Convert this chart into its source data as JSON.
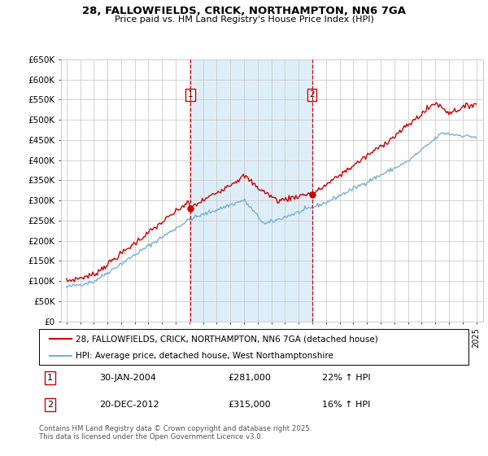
{
  "title1": "28, FALLOWFIELDS, CRICK, NORTHAMPTON, NN6 7GA",
  "title2": "Price paid vs. HM Land Registry's House Price Index (HPI)",
  "ylim": [
    0,
    650000
  ],
  "yticks": [
    0,
    50000,
    100000,
    150000,
    200000,
    250000,
    300000,
    350000,
    400000,
    450000,
    500000,
    550000,
    600000,
    650000
  ],
  "ytick_labels": [
    "£0",
    "£50K",
    "£100K",
    "£150K",
    "£200K",
    "£250K",
    "£300K",
    "£350K",
    "£400K",
    "£450K",
    "£500K",
    "£550K",
    "£600K",
    "£650K"
  ],
  "xlim_start": 1994.6,
  "xlim_end": 2025.5,
  "purchase1_date": 2004.08,
  "purchase1_price": 281000,
  "purchase1_hpi_pct": "22%",
  "purchase1_date_str": "30-JAN-2004",
  "purchase2_date": 2012.97,
  "purchase2_price": 315000,
  "purchase2_hpi_pct": "16%",
  "purchase2_date_str": "20-DEC-2012",
  "line_color_red": "#cc0000",
  "line_color_blue": "#7ab0d4",
  "shaded_color": "#ddeef8",
  "grid_color": "#cccccc",
  "background_color": "#ffffff",
  "legend_label_red": "28, FALLOWFIELDS, CRICK, NORTHAMPTON, NN6 7GA (detached house)",
  "legend_label_blue": "HPI: Average price, detached house, West Northamptonshire",
  "footer": "Contains HM Land Registry data © Crown copyright and database right 2025.\nThis data is licensed under the Open Government Licence v3.0."
}
